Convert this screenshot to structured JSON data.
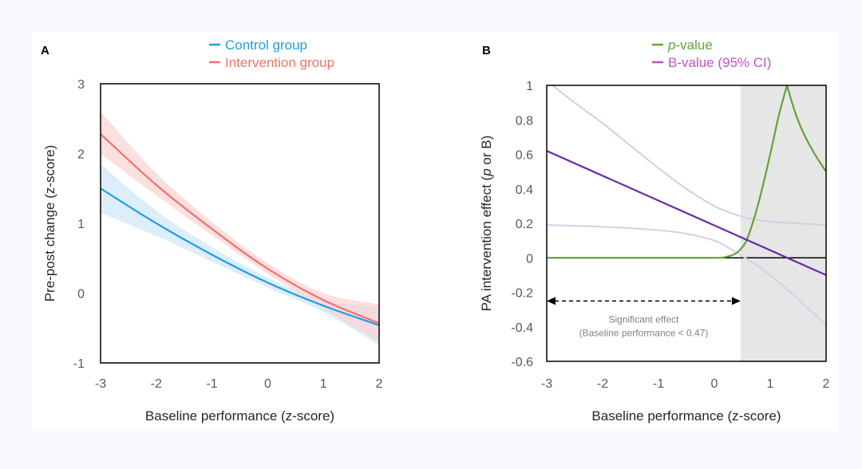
{
  "chart_data": [
    {
      "panel": "A",
      "type": "line",
      "title": "",
      "xlabel": "Baseline performance (z-score)",
      "ylabel": "Pre-post change (z-score)",
      "xlim": [
        -3,
        2
      ],
      "ylim": [
        -1,
        3
      ],
      "xticks": [
        "-3",
        "-2",
        "-1",
        "0",
        "1",
        "2"
      ],
      "yticks": [
        "3",
        "2",
        "1",
        "0",
        "-1"
      ],
      "xtick_values": [
        -3,
        -2,
        -1,
        0,
        1,
        2
      ],
      "ytick_values": [
        3,
        2,
        1,
        0,
        -1
      ],
      "grid": false,
      "legend_position": "top-center",
      "x": [
        -3,
        -2,
        -1,
        0,
        1,
        2
      ],
      "series": [
        {
          "name": "Control group",
          "color": "#1e9fe6",
          "band_color": "#cfe6f8",
          "values": [
            1.5,
            1.0,
            0.55,
            0.15,
            -0.18,
            -0.46
          ],
          "ci_upper": [
            1.85,
            1.18,
            0.66,
            0.22,
            -0.1,
            -0.2
          ],
          "ci_lower": [
            1.15,
            0.82,
            0.45,
            0.08,
            -0.27,
            -0.74
          ]
        },
        {
          "name": "Intervention group",
          "color": "#f0706c",
          "band_color": "#fbd2d2",
          "values": [
            2.28,
            1.55,
            0.92,
            0.35,
            -0.1,
            -0.43
          ],
          "ci_upper": [
            2.6,
            1.72,
            1.02,
            0.43,
            0.0,
            -0.16
          ],
          "ci_lower": [
            2.0,
            1.4,
            0.83,
            0.28,
            -0.22,
            -0.7
          ]
        }
      ]
    },
    {
      "panel": "B",
      "type": "line",
      "title": "",
      "xlabel": "Baseline performance (z-score)",
      "ylabel": "PA intervention effect (p or B)",
      "ylabel_parts": [
        "PA intervention effect (",
        "p",
        " or B)"
      ],
      "xlim": [
        -3,
        2
      ],
      "ylim": [
        -0.6,
        1
      ],
      "xticks": [
        "-3",
        "-2",
        "-1",
        "0",
        "1",
        "2"
      ],
      "yticks": [
        "1",
        "0.8",
        "0.6",
        "0.4",
        "0.2",
        "0",
        "-0.2",
        "-0.4",
        "-0.6"
      ],
      "xtick_values": [
        -3,
        -2,
        -1,
        0,
        1,
        2
      ],
      "ytick_values": [
        1,
        0.8,
        0.6,
        0.4,
        0.2,
        0,
        -0.2,
        -0.4,
        -0.6
      ],
      "grid": false,
      "legend_position": "top-center",
      "zero_line": 0,
      "shaded_region": {
        "x_from": 0.47,
        "x_to": 2,
        "color": "#e6e6e6"
      },
      "annotation": {
        "arrow_y": -0.25,
        "arrow_x_from": -3,
        "arrow_x_to": 0.47,
        "line1": "Significant effect",
        "line2": "(Baseline performance < 0.47)"
      },
      "series": [
        {
          "name": "p-value",
          "legend_italic": "p",
          "legend_rest": "-value",
          "color": "#62a33a",
          "x": [
            -3,
            -1,
            0,
            0.2,
            0.35,
            0.47,
            0.6,
            0.8,
            1.0,
            1.15,
            1.3,
            1.45,
            1.6,
            1.8,
            2.0
          ],
          "values": [
            0.0,
            0.0,
            0.0,
            0.005,
            0.02,
            0.05,
            0.12,
            0.33,
            0.6,
            0.82,
            1.0,
            0.84,
            0.72,
            0.6,
            0.5
          ]
        },
        {
          "name": "B-value (95% CI)",
          "color": "#6a2da8",
          "legend_color": "#c050c8",
          "x": [
            -3,
            2
          ],
          "values": [
            0.62,
            -0.1
          ]
        },
        {
          "name": "B-value upper CI",
          "color": "#dccbe6",
          "x": [
            -2.9,
            -2.5,
            -2,
            -1.5,
            -1,
            -0.5,
            0,
            0.3,
            0.6,
            1.0,
            1.5,
            2.0
          ],
          "values": [
            1.0,
            0.9,
            0.78,
            0.65,
            0.52,
            0.4,
            0.3,
            0.26,
            0.23,
            0.21,
            0.2,
            0.19
          ]
        },
        {
          "name": "B-value lower CI",
          "color": "#dccbe6",
          "x": [
            -3,
            -2,
            -1,
            -0.5,
            0,
            0.3,
            0.5,
            0.8,
            1.0,
            1.5,
            2.0
          ],
          "values": [
            0.19,
            0.18,
            0.16,
            0.14,
            0.1,
            0.05,
            0.01,
            -0.05,
            -0.1,
            -0.24,
            -0.39
          ]
        }
      ]
    }
  ]
}
